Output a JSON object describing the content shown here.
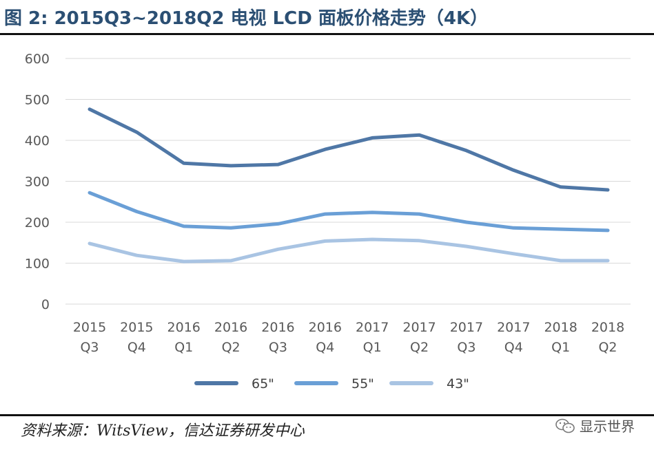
{
  "title": "图 2: 2015Q3~2018Q2 电视 LCD 面板价格走势（4K）",
  "source": "资料来源：WitsView，信达证券研发中心",
  "watermark": "显示世界",
  "chart_data": {
    "type": "line",
    "title": "",
    "xlabel": "",
    "ylabel": "",
    "ylim": [
      0,
      600
    ],
    "yticks": [
      0,
      100,
      200,
      300,
      400,
      500,
      600
    ],
    "grid": true,
    "legend_position": "bottom",
    "categories": [
      [
        "2015",
        "Q3"
      ],
      [
        "2015",
        "Q4"
      ],
      [
        "2016",
        "Q1"
      ],
      [
        "2016",
        "Q2"
      ],
      [
        "2016",
        "Q3"
      ],
      [
        "2016",
        "Q4"
      ],
      [
        "2017",
        "Q1"
      ],
      [
        "2017",
        "Q2"
      ],
      [
        "2017",
        "Q3"
      ],
      [
        "2017",
        "Q4"
      ],
      [
        "2018",
        "Q1"
      ],
      [
        "2018",
        "Q2"
      ]
    ],
    "series": [
      {
        "name": "65\"",
        "color": "#4f77a6",
        "values": [
          476,
          420,
          344,
          338,
          341,
          378,
          406,
          413,
          375,
          327,
          286,
          279
        ]
      },
      {
        "name": "55\"",
        "color": "#6a9fd6",
        "values": [
          272,
          226,
          190,
          186,
          196,
          220,
          224,
          220,
          200,
          186,
          183,
          180
        ]
      },
      {
        "name": "43\"",
        "color": "#a9c4e3",
        "values": [
          148,
          119,
          104,
          106,
          134,
          154,
          158,
          155,
          141,
          123,
          106,
          106
        ]
      }
    ]
  }
}
